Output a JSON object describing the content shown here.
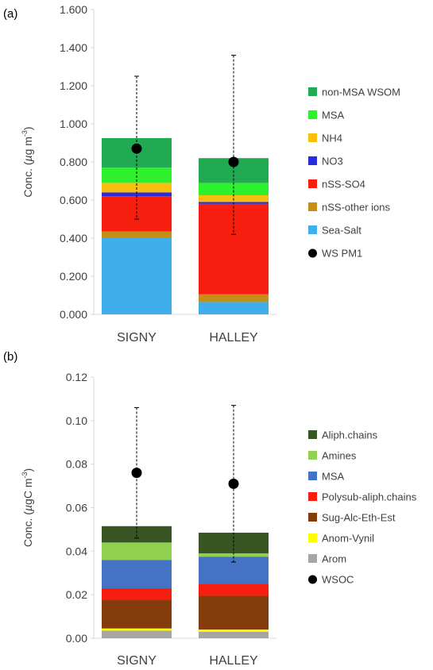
{
  "chart_data": [
    {
      "type": "bar",
      "stacked": true,
      "panel_label": "(a)",
      "ylabel": "Conc. (µg m⁻³)",
      "ylabel_parts": {
        "prefix": "Conc. (",
        "mu": "µ",
        "unit": "g m",
        "sup": "-3",
        "suffix": ")"
      },
      "ylim": [
        0,
        1.6
      ],
      "yticks": [
        "0.000",
        "0.200",
        "0.400",
        "0.600",
        "0.800",
        "1.000",
        "1.200",
        "1.400",
        "1.600"
      ],
      "categories": [
        "SIGNY",
        "HALLEY"
      ],
      "series": [
        {
          "name": "Sea-Salt",
          "color": "#3FAEEA",
          "values": [
            0.4,
            0.065
          ]
        },
        {
          "name": "nSS-other ions",
          "color": "#C48F16",
          "values": [
            0.035,
            0.04
          ]
        },
        {
          "name": "nSS-SO4",
          "color": "#F61E0E",
          "values": [
            0.185,
            0.475
          ]
        },
        {
          "name": "NO3",
          "color": "#2A2CD8",
          "values": [
            0.02,
            0.01
          ]
        },
        {
          "name": "NH4",
          "color": "#F9BE0E",
          "values": [
            0.05,
            0.035
          ]
        },
        {
          "name": "MSA",
          "color": "#2CF12C",
          "values": [
            0.08,
            0.065
          ]
        },
        {
          "name": "non-MSA WSOM",
          "color": "#21AA52",
          "values": [
            0.155,
            0.13
          ]
        }
      ],
      "points": {
        "name": "WS PM1",
        "color": "#000000",
        "values": [
          0.87,
          0.8
        ]
      },
      "error": {
        "low": [
          0.5,
          0.42
        ],
        "high": [
          1.25,
          1.36
        ]
      }
    },
    {
      "type": "bar",
      "stacked": true,
      "panel_label": "(b)",
      "ylabel": "Conc. (µgC m⁻³)",
      "ylabel_parts": {
        "prefix": "Conc. (",
        "mu": "µ",
        "unit": "gC m",
        "sup": "-3",
        "suffix": ")"
      },
      "ylim": [
        0,
        0.12
      ],
      "yticks": [
        "0.00",
        "0.02",
        "0.04",
        "0.06",
        "0.08",
        "0.10",
        "0.12"
      ],
      "categories": [
        "SIGNY",
        "HALLEY"
      ],
      "series": [
        {
          "name": "Arom",
          "color": "#A5A5A5",
          "values": [
            0.0035,
            0.003
          ]
        },
        {
          "name": "Anom-Vynil",
          "color": "#FFFF00",
          "values": [
            0.001,
            0.001
          ]
        },
        {
          "name": "Sug-Alc-Eth-Est",
          "color": "#843C0C",
          "values": [
            0.013,
            0.0155
          ]
        },
        {
          "name": "Polysub-aliph.chains",
          "color": "#F61E0E",
          "values": [
            0.0055,
            0.0055
          ]
        },
        {
          "name": "MSA",
          "color": "#4472C4",
          "values": [
            0.013,
            0.0125
          ]
        },
        {
          "name": "Amines",
          "color": "#92D050",
          "values": [
            0.008,
            0.0015
          ]
        },
        {
          "name": "Aliph.chains",
          "color": "#375623",
          "values": [
            0.0075,
            0.0095
          ]
        }
      ],
      "points": {
        "name": "WSOC",
        "color": "#000000",
        "values": [
          0.076,
          0.071
        ]
      },
      "error": {
        "low": [
          0.046,
          0.035
        ],
        "high": [
          0.106,
          0.107
        ]
      }
    }
  ]
}
